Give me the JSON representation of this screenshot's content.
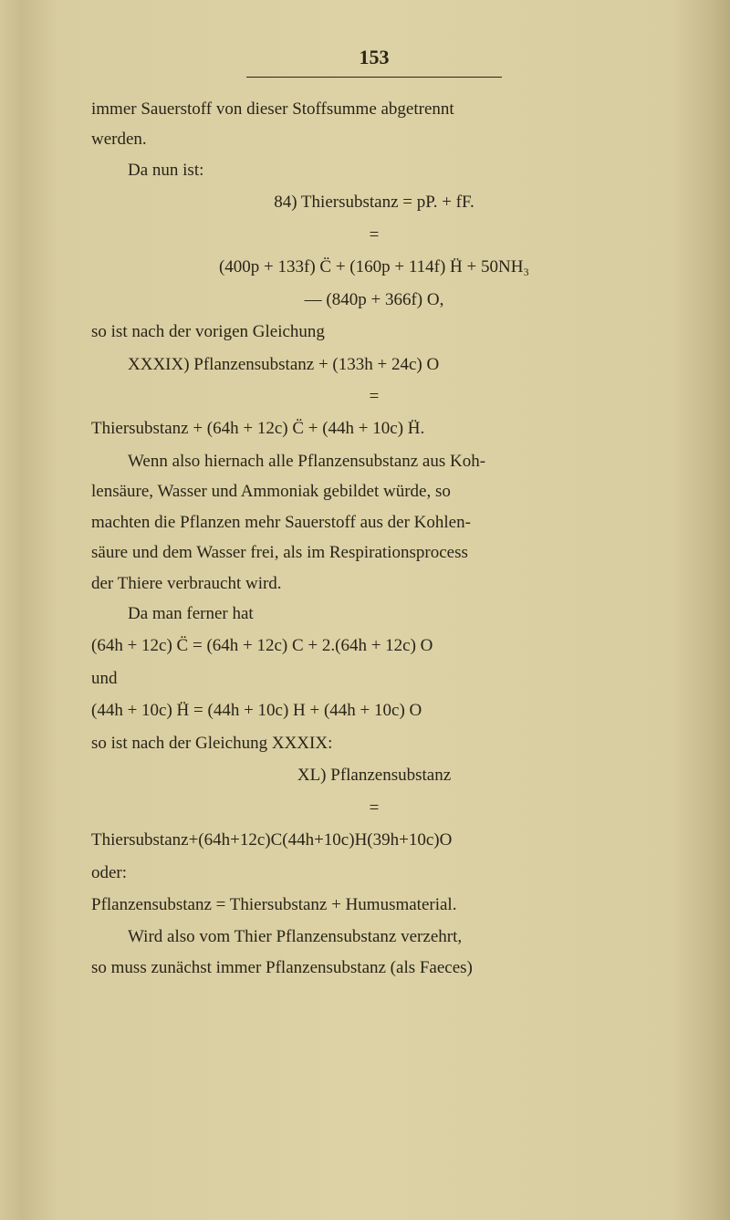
{
  "page_number": "153",
  "lines": {
    "l1": "immer Sauerstoff von dieser Stoffsumme abgetrennt",
    "l2": "werden.",
    "l3": "Da nun ist:",
    "l4": "84) Thiersubstanz = pP. + fF.",
    "eq1": "=",
    "l5": "(400p + 133f) C̈ + (160p + 114f) Ḧ + 50NH₃",
    "l6": "— (840p + 366f) O,",
    "l7": "so ist nach der vorigen Gleichung",
    "l8": "XXXIX) Pflanzensubstanz + (133h + 24c) O",
    "eq2": "=",
    "l9": "Thiersubstanz + (64h + 12c) C̈ + (44h + 10c) Ḧ.",
    "l10": "Wenn also hiernach alle Pflanzensubstanz aus Koh-",
    "l11": "lensäure, Wasser und Ammoniak gebildet würde, so",
    "l12": "machten die Pflanzen mehr Sauerstoff aus der Kohlen-",
    "l13": "säure und dem Wasser frei, als im Respirationsprocess",
    "l14": "der Thiere verbraucht wird.",
    "l15": "Da man ferner hat",
    "l16": "(64h + 12c) C̈ = (64h + 12c) C + 2.(64h + 12c) O",
    "l17": "und",
    "l18": "(44h + 10c) Ḧ = (44h + 10c) H + (44h + 10c) O",
    "l19": "so ist nach der Gleichung XXXIX:",
    "l20": "XL) Pflanzensubstanz",
    "eq3": "=",
    "l21": "Thiersubstanz+(64h+12c)C(44h+10c)H(39h+10c)O",
    "l22": "oder:",
    "l23": "Pflanzensubstanz = Thiersubstanz + Humusmaterial.",
    "l24": "Wird also vom Thier Pflanzensubstanz verzehrt,",
    "l25": "so muss zunächst immer Pflanzensubstanz (als Faeces)"
  },
  "colors": {
    "text": "#2a2418",
    "bg_center": "#dcd2a6",
    "bg_edge": "#c8bc8e"
  }
}
